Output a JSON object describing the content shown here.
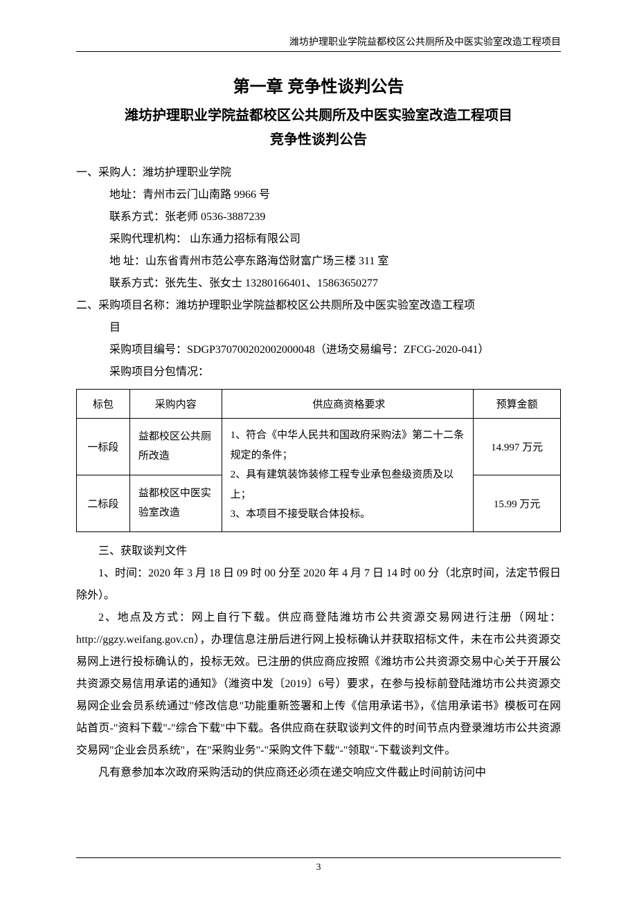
{
  "header": {
    "running_title": "潍坊护理职业学院益都校区公共厕所及中医实验室改造工程项目"
  },
  "titles": {
    "chapter": "第一章  竞争性谈判公告",
    "project": "潍坊护理职业学院益都校区公共厕所及中医实验室改造工程项目",
    "notice": "竞争性谈判公告"
  },
  "section1": {
    "heading": "一、采购人：潍坊护理职业学院",
    "address": "地址：青州市云门山南路 9966 号",
    "contact": "联系方式：张老师 0536-3887239",
    "agency": "采购代理机构：  山东通力招标有限公司",
    "agency_address": "地      址：山东省青州市范公亭东路海岱财富广场三楼 311 室",
    "agency_contact": "联系方式：张先生、张女士  13280166401、15863650277"
  },
  "section2": {
    "heading": "二、采购项目名称：潍坊护理职业学院益都校区公共厕所及中医实验室改造工程项",
    "heading_cont": "目",
    "project_no": "采购项目编号：SDGP370700202002000048（进场交易编号：ZFCG-2020-041）",
    "subpackage_label": "采购项目分包情况："
  },
  "table": {
    "headers": {
      "col1": "标包",
      "col2": "采购内容",
      "col3": "供应商资格要求",
      "col4": "预算金额"
    },
    "rows": [
      {
        "biaobao": "一标段",
        "content": "益都校区公共厕所改造",
        "budget": "14.997 万元"
      },
      {
        "biaobao": "二标段",
        "content": "益都校区中医实验室改造",
        "budget": "15.99 万元"
      }
    ],
    "requirements": "1、符合《中华人民共和国政府采购法》第二十二条规定的条件；\n2、具有建筑装饰装修工程专业承包叁级资质及以上；\n3、本项目不接受联合体投标。"
  },
  "section3": {
    "heading": "三、获取谈判文件",
    "p1": "1、时间：2020 年 3 月 18 日 09 时 00 分至 2020 年 4 月 7 日 14 时 00 分（北京时间，法定节假日除外）。",
    "p2": "2、地点及方式：网上自行下载。供应商登陆潍坊市公共资源交易网进行注册（网址：http://ggzy.weifang.gov.cn），办理信息注册后进行网上投标确认并获取招标文件，未在市公共资源交易网上进行投标确认的，投标无效。已注册的供应商应按照《潍坊市公共资源交易中心关于开展公共资源交易信用承诺的通知》（潍资中发〔2019〕6号）要求，在参与投标前登陆潍坊市公共资源交易网企业会员系统通过\"修改信息\"功能重新签署和上传《信用承诺书》，《信用承诺书》模板可在网站首页-\"资料下载\"-\"综合下载\"中下载。各供应商在获取谈判文件的时间节点内登录潍坊市公共资源交易网\"企业会员系统\"，在\"采购业务\"-\"采购文件下载\"-\"领取\"-下载谈判文件。",
    "p3": "凡有意参加本次政府采购活动的供应商还必须在递交响应文件截止时间前访问中"
  },
  "footer": {
    "page_number": "3"
  },
  "colors": {
    "text": "#000000",
    "background": "#ffffff",
    "border": "#000000"
  }
}
